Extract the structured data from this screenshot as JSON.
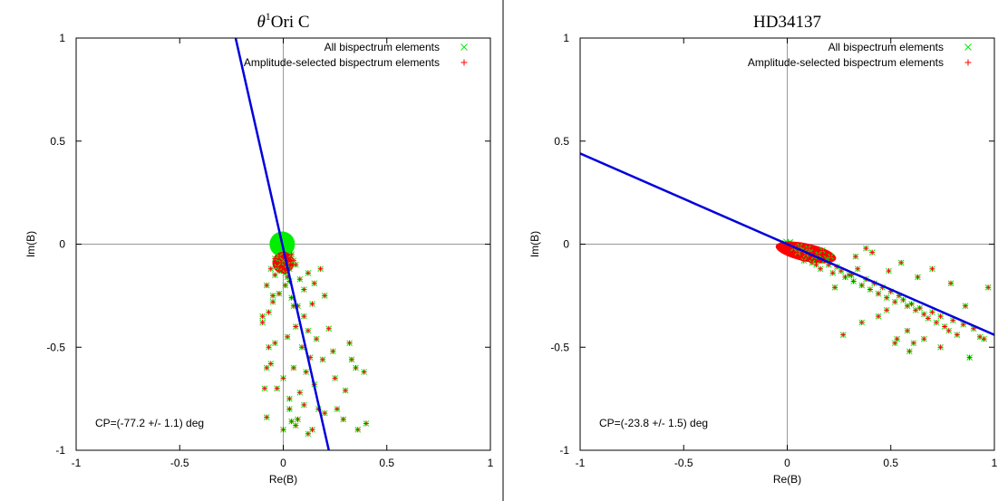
{
  "chart_data": [
    {
      "type": "scatter",
      "title_symbol": "θ",
      "title_sup": "1",
      "title_rest": "Ori C",
      "xlabel": "Re(B)",
      "ylabel": "Im(B)",
      "xlim": [
        -1,
        1
      ],
      "ylim": [
        -1,
        1
      ],
      "xticks": [
        -1,
        -0.5,
        0,
        0.5,
        1
      ],
      "yticks": [
        -1,
        -0.5,
        0,
        0.5,
        1
      ],
      "xtick_labels": [
        "-1",
        "-0.5",
        "0",
        "0.5",
        "1"
      ],
      "ytick_labels": [
        "-1",
        "-0.5",
        "0",
        "0.5",
        "1"
      ],
      "grid": false,
      "zero_axes": true,
      "legend_position": "top-right",
      "annotation": "CP=(-77.2 +/- 1.1) deg",
      "closure_phase_deg": -77.2,
      "series": [
        {
          "name": "All bispectrum elements",
          "marker": "x",
          "color": "#00ee00",
          "x": [
            0.0,
            0.01,
            -0.01,
            0.02,
            -0.02,
            0.0,
            0.01,
            -0.01,
            0.015,
            -0.015,
            0.02,
            -0.005,
            0.005,
            0.0,
            0.025,
            -0.025,
            0.03,
            -0.03
          ],
          "y": [
            0.0,
            0.01,
            -0.01,
            0.0,
            0.0,
            0.02,
            -0.02,
            0.02,
            0.005,
            -0.005,
            0.015,
            0.03,
            -0.03,
            -0.015,
            -0.01,
            0.01,
            0.0,
            -0.02
          ]
        },
        {
          "name": "Amplitude-selected bispectrum elements",
          "marker": "+",
          "color": "#ff0000",
          "x": [
            0.0,
            0.02,
            -0.02,
            0.03,
            -0.01,
            0.04,
            0.01,
            -0.03,
            0.05,
            0.02,
            0.0,
            -0.04,
            0.06,
            0.03,
            -0.02,
            0.01,
            -0.06,
            -0.04,
            0.08,
            0.1,
            -0.08,
            0.12,
            -0.02,
            0.15,
            0.04,
            0.18,
            -0.05,
            0.2,
            0.07,
            -0.07,
            0.1,
            0.14,
            -0.1,
            0.06,
            0.12,
            0.02,
            -0.04,
            0.09,
            0.16,
            0.22,
            0.13,
            -0.06,
            0.05,
            0.11,
            0.0,
            0.19,
            0.24,
            -0.03,
            0.08,
            0.15,
            0.03,
            0.1,
            0.17,
            -0.08,
            0.06,
            0.25,
            0.14,
            0.04,
            0.12,
            0.2,
            0.35,
            0.33,
            0.39,
            0.4,
            0.3,
            0.26,
            0.36,
            0.29,
            0.32,
            -0.1,
            -0.08,
            -0.09,
            0.0,
            0.03,
            0.05,
            -0.05,
            0.07,
            -0.07
          ],
          "y": [
            -0.08,
            -0.1,
            -0.06,
            -0.12,
            -0.09,
            -0.05,
            -0.14,
            -0.11,
            -0.08,
            -0.16,
            -0.04,
            -0.07,
            -0.1,
            -0.18,
            -0.13,
            -0.2,
            -0.12,
            -0.15,
            -0.17,
            -0.22,
            -0.2,
            -0.14,
            -0.24,
            -0.19,
            -0.26,
            -0.12,
            -0.28,
            -0.25,
            -0.3,
            -0.33,
            -0.35,
            -0.29,
            -0.38,
            -0.4,
            -0.42,
            -0.45,
            -0.48,
            -0.5,
            -0.46,
            -0.41,
            -0.55,
            -0.58,
            -0.6,
            -0.62,
            -0.65,
            -0.56,
            -0.52,
            -0.7,
            -0.72,
            -0.68,
            -0.75,
            -0.78,
            -0.8,
            -0.84,
            -0.88,
            -0.65,
            -0.9,
            -0.86,
            -0.92,
            -0.82,
            -0.6,
            -0.56,
            -0.62,
            -0.87,
            -0.71,
            -0.8,
            -0.9,
            -0.85,
            -0.48,
            -0.35,
            -0.6,
            -0.7,
            -0.9,
            -0.8,
            -0.3,
            -0.25,
            -0.85,
            -0.5
          ]
        }
      ],
      "fit_line": {
        "color": "#0000dd",
        "x": [
          -0.23,
          0.22
        ],
        "y": [
          1.0,
          -1.0
        ]
      }
    },
    {
      "type": "scatter",
      "title": "HD34137",
      "xlabel": "Re(B)",
      "ylabel": "Im(B)",
      "xlim": [
        -1,
        1
      ],
      "ylim": [
        -1,
        1
      ],
      "xticks": [
        -1,
        -0.5,
        0,
        0.5,
        1
      ],
      "yticks": [
        -1,
        -0.5,
        0,
        0.5,
        1
      ],
      "xtick_labels": [
        "-1",
        "-0.5",
        "0",
        "0.5",
        "1"
      ],
      "ytick_labels": [
        "-1",
        "-0.5",
        "0",
        "0.5",
        "1"
      ],
      "grid": false,
      "zero_axes": true,
      "legend_position": "top-right",
      "annotation": "CP=(-23.8 +/- 1.5) deg",
      "closure_phase_deg": -23.8,
      "series": [
        {
          "name": "All bispectrum elements",
          "marker": "x",
          "color": "#00ee00",
          "x": [
            0.0,
            0.01,
            -0.01,
            0.015,
            0.005,
            -0.005,
            0.02,
            0.01
          ],
          "y": [
            0.0,
            -0.005,
            0.005,
            0.01,
            -0.012,
            0.012,
            -0.005,
            0.008
          ]
        },
        {
          "name": "Amplitude-selected bispectrum elements",
          "marker": "+",
          "color": "#ff0000",
          "x": [
            0.03,
            0.05,
            0.07,
            0.09,
            0.11,
            0.13,
            0.15,
            0.17,
            0.19,
            0.21,
            0.06,
            0.08,
            0.1,
            0.12,
            0.14,
            0.16,
            0.18,
            0.2,
            0.22,
            0.24,
            0.26,
            0.28,
            0.3,
            0.32,
            0.34,
            0.36,
            0.38,
            0.4,
            0.42,
            0.44,
            0.46,
            0.48,
            0.5,
            0.52,
            0.54,
            0.56,
            0.58,
            0.6,
            0.62,
            0.64,
            0.66,
            0.68,
            0.7,
            0.72,
            0.74,
            0.76,
            0.78,
            0.8,
            0.82,
            0.85,
            0.9,
            0.93,
            0.97,
            0.38,
            0.41,
            0.33,
            0.49,
            0.55,
            0.63,
            0.7,
            0.79,
            0.86,
            0.44,
            0.52,
            0.58,
            0.36,
            0.27,
            0.31,
            0.23,
            0.48,
            0.61,
            0.74,
            0.66,
            0.88,
            0.95,
            0.59,
            0.53
          ],
          "y": [
            -0.02,
            -0.04,
            -0.03,
            -0.05,
            -0.04,
            -0.06,
            -0.05,
            -0.03,
            -0.07,
            -0.06,
            -0.01,
            -0.08,
            -0.02,
            -0.09,
            -0.1,
            -0.12,
            -0.08,
            -0.1,
            -0.14,
            -0.11,
            -0.13,
            -0.16,
            -0.15,
            -0.18,
            -0.12,
            -0.2,
            -0.17,
            -0.22,
            -0.19,
            -0.24,
            -0.21,
            -0.26,
            -0.23,
            -0.28,
            -0.25,
            -0.27,
            -0.3,
            -0.29,
            -0.32,
            -0.31,
            -0.34,
            -0.36,
            -0.33,
            -0.38,
            -0.35,
            -0.4,
            -0.42,
            -0.37,
            -0.44,
            -0.39,
            -0.41,
            -0.45,
            -0.21,
            -0.02,
            -0.04,
            -0.06,
            -0.13,
            -0.09,
            -0.16,
            -0.12,
            -0.19,
            -0.3,
            -0.35,
            -0.48,
            -0.42,
            -0.38,
            -0.44,
            -0.15,
            -0.21,
            -0.32,
            -0.48,
            -0.5,
            -0.46,
            -0.55,
            -0.46,
            -0.52,
            -0.46
          ],
          "note": ""
        }
      ],
      "fit_line": {
        "color": "#0000dd",
        "x": [
          -1.0,
          1.0
        ],
        "y": [
          0.44,
          -0.44
        ]
      }
    }
  ]
}
